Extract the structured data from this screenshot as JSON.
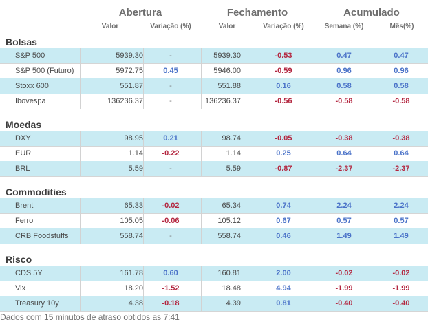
{
  "header": {
    "groups": [
      "Abertura",
      "Fechamento",
      "Acumulado"
    ],
    "columns": [
      "Valor",
      "Variação (%)",
      "Valor",
      "Variação (%)",
      "Semana (%)",
      "Mês(%)"
    ]
  },
  "sections": [
    {
      "title": "Bolsas",
      "rows": [
        {
          "name": "S&P 500",
          "open_value": "5939.30",
          "open_var": "-",
          "close_value": "5939.30",
          "close_var": "-0.53",
          "week": "0.47",
          "month": "0.47"
        },
        {
          "name": "S&P 500 (Futuro)",
          "open_value": "5972.75",
          "open_var": "0.45",
          "close_value": "5946.00",
          "close_var": "-0.59",
          "week": "0.96",
          "month": "0.96"
        },
        {
          "name": "Stoxx 600",
          "open_value": "551.87",
          "open_var": "-",
          "close_value": "551.88",
          "close_var": "0.16",
          "week": "0.58",
          "month": "0.58"
        },
        {
          "name": "Ibovespa",
          "open_value": "136236.37",
          "open_var": "-",
          "close_value": "136236.37",
          "close_var": "-0.56",
          "week": "-0.58",
          "month": "-0.58"
        }
      ]
    },
    {
      "title": "Moedas",
      "rows": [
        {
          "name": "DXY",
          "open_value": "98.95",
          "open_var": "0.21",
          "close_value": "98.74",
          "close_var": "-0.05",
          "week": "-0.38",
          "month": "-0.38"
        },
        {
          "name": "EUR",
          "open_value": "1.14",
          "open_var": "-0.22",
          "close_value": "1.14",
          "close_var": "0.25",
          "week": "0.64",
          "month": "0.64"
        },
        {
          "name": "BRL",
          "open_value": "5.59",
          "open_var": "-",
          "close_value": "5.59",
          "close_var": "-0.87",
          "week": "-2.37",
          "month": "-2.37"
        }
      ]
    },
    {
      "title": "Commodities",
      "rows": [
        {
          "name": "Brent",
          "open_value": "65.33",
          "open_var": "-0.02",
          "close_value": "65.34",
          "close_var": "0.74",
          "week": "2.24",
          "month": "2.24"
        },
        {
          "name": "Ferro",
          "open_value": "105.05",
          "open_var": "-0.06",
          "close_value": "105.12",
          "close_var": "0.67",
          "week": "0.57",
          "month": "0.57"
        },
        {
          "name": "CRB Foodstuffs",
          "open_value": "558.74",
          "open_var": "-",
          "close_value": "558.74",
          "close_var": "0.46",
          "week": "1.49",
          "month": "1.49"
        }
      ]
    },
    {
      "title": "Risco",
      "rows": [
        {
          "name": "CDS 5Y",
          "open_value": "161.78",
          "open_var": "0.60",
          "close_value": "160.81",
          "close_var": "2.00",
          "week": "-0.02",
          "month": "-0.02"
        },
        {
          "name": "Vix",
          "open_value": "18.20",
          "open_var": "-1.52",
          "close_value": "18.48",
          "close_var": "4.94",
          "week": "-1.99",
          "month": "-1.99"
        },
        {
          "name": "Treasury 10y",
          "open_value": "4.38",
          "open_var": "-0.18",
          "close_value": "4.39",
          "close_var": "0.81",
          "week": "-0.40",
          "month": "-0.40"
        }
      ]
    }
  ],
  "footer": "Dados com 15 minutos de atraso obtidos as 7:41",
  "colors": {
    "positive": "#4a72c8",
    "negative": "#b3263f",
    "row_highlight": "#c9ebf3"
  }
}
